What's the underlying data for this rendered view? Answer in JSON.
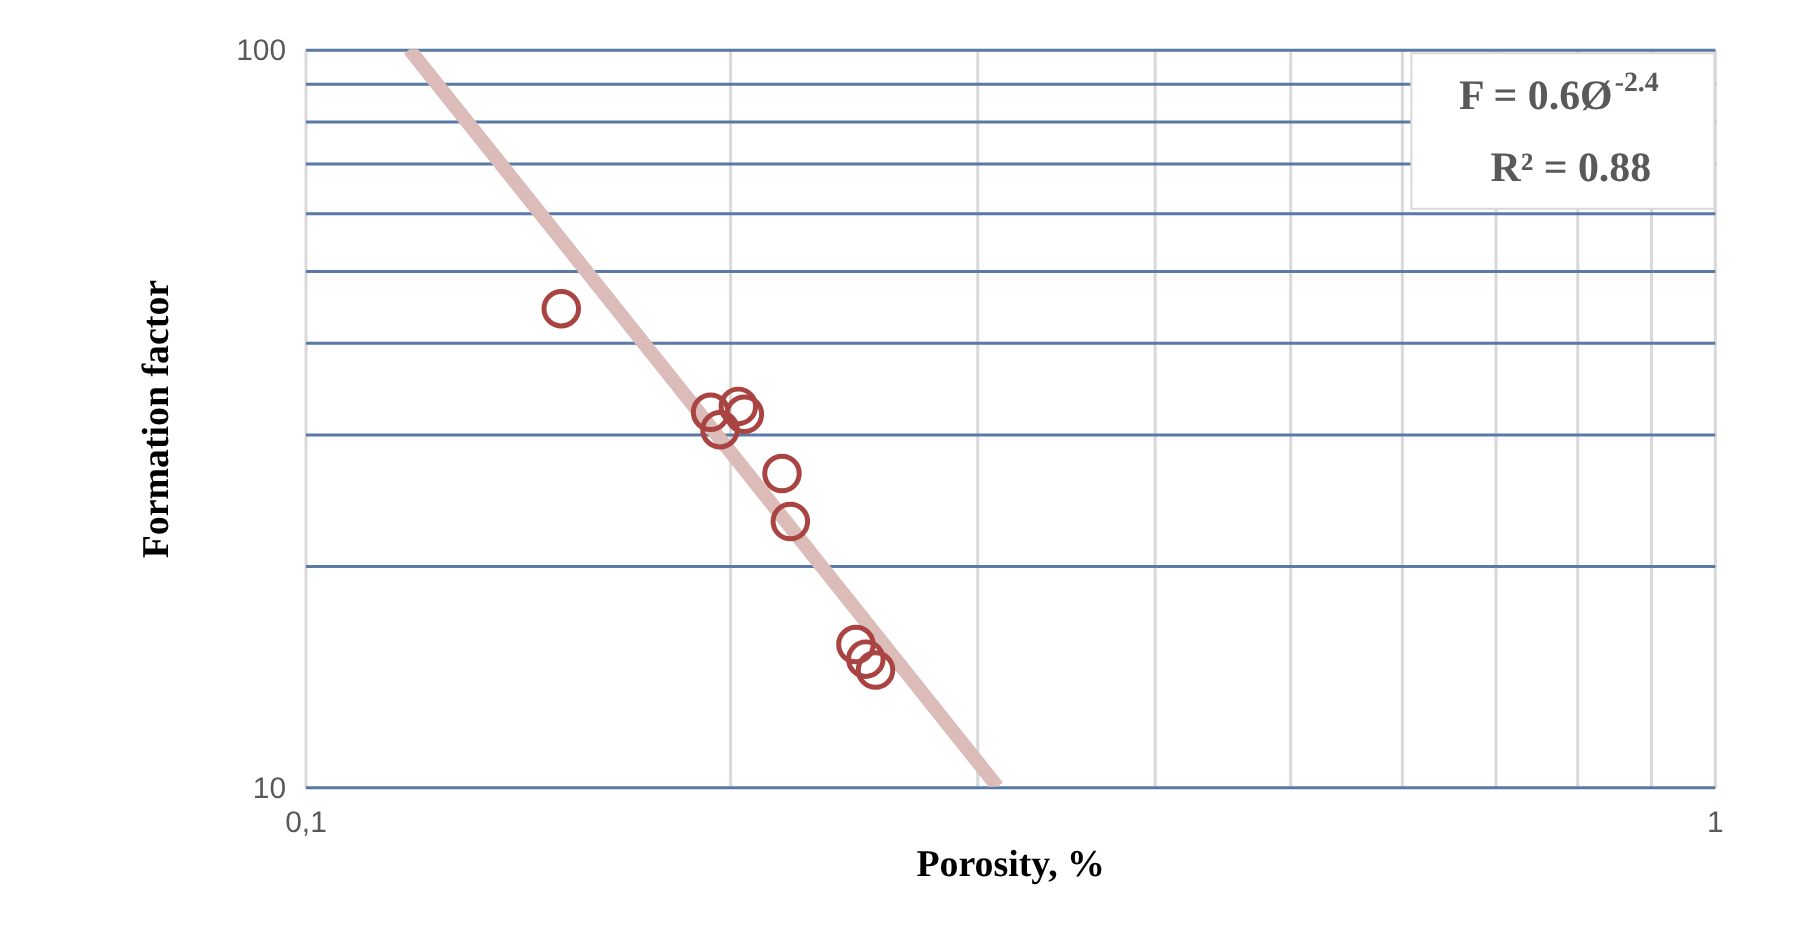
{
  "chart_data": {
    "type": "scatter",
    "xlabel": "Porosity, %",
    "ylabel": "Formation  factor",
    "log": "xy",
    "grid": true,
    "xlim": [
      0.1,
      1
    ],
    "ylim": [
      10,
      100
    ],
    "xticks": [
      {
        "value": 0.1,
        "label": "0,1"
      },
      {
        "value": 0.2,
        "label": null
      },
      {
        "value": 0.3,
        "label": null
      },
      {
        "value": 0.4,
        "label": null
      },
      {
        "value": 0.5,
        "label": null
      },
      {
        "value": 0.6,
        "label": null
      },
      {
        "value": 0.7,
        "label": null
      },
      {
        "value": 0.8,
        "label": null
      },
      {
        "value": 0.9,
        "label": null
      },
      1
    ],
    "yticks": [
      10,
      {
        "value": 20,
        "label": null
      },
      {
        "value": 30,
        "label": null
      },
      {
        "value": 40,
        "label": null
      },
      {
        "value": 50,
        "label": null
      },
      {
        "value": 60,
        "label": null
      },
      {
        "value": 70,
        "label": null
      },
      {
        "value": 80,
        "label": null
      },
      {
        "value": 90,
        "label": null
      },
      100
    ],
    "annotations": [
      "F = 0.6Ø$^{-2.4}$",
      "R² = 0.88"
    ],
    "series": [
      {
        "marker": "circle",
        "color": "#a94442",
        "x": [
          0.152,
          0.194,
          0.197,
          0.203,
          0.205,
          0.218,
          0.221,
          0.246,
          0.25,
          0.254
        ],
        "values": [
          44.5,
          32.2,
          30.5,
          32.8,
          32.0,
          26.6,
          22.9,
          15.6,
          14.9,
          14.4
        ]
      },
      {
        "type": "line",
        "marker": "none",
        "color": "#dcbcb9",
        "x": [
          0.1186,
          0.31
        ],
        "values": [
          100,
          10
        ]
      }
    ]
  }
}
